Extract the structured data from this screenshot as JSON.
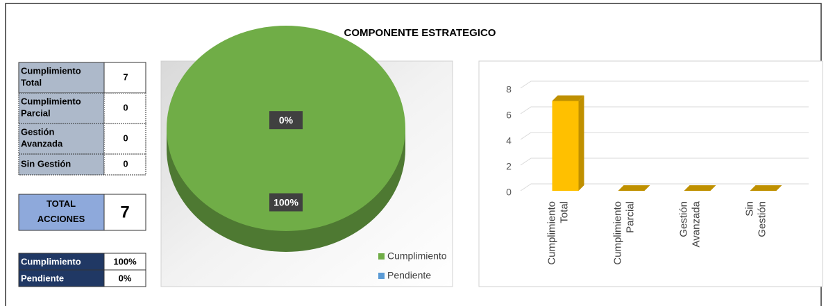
{
  "header": {
    "title": "COMPONENTE ESTRATEGICO"
  },
  "table": {
    "rows": [
      [
        "Cumplimiento Total",
        "7"
      ],
      [
        "Cumplimiento Parcial",
        "0"
      ],
      [
        "Gestión Avanzada",
        "0"
      ],
      [
        "Sin Gestión",
        "0"
      ]
    ]
  },
  "total": {
    "label": "TOTAL ACCIONES",
    "value": "7"
  },
  "summary": {
    "rows": [
      [
        "Cumplimiento",
        "100%"
      ],
      [
        "Pendiente",
        "0%"
      ]
    ]
  },
  "chart_data": [
    {
      "type": "pie",
      "categories": [
        "Cumplimiento",
        "Pendiente"
      ],
      "values": [
        100,
        0
      ],
      "value_labels": [
        "100%",
        "0%"
      ],
      "colors": [
        "#70ad47",
        "#5b9bd5"
      ],
      "legend": "bottom-right"
    },
    {
      "type": "bar",
      "categories": [
        "Cumplimiento\nTotal",
        "Cumplimiento\nParcial",
        "Gestión\nAvanzada",
        "Sin Gestión"
      ],
      "values": [
        7,
        0,
        0,
        0
      ],
      "color": "#ffc000",
      "ylim": [
        0,
        8
      ],
      "yticks": [
        0,
        2,
        4,
        6,
        8
      ],
      "grid": true
    }
  ]
}
